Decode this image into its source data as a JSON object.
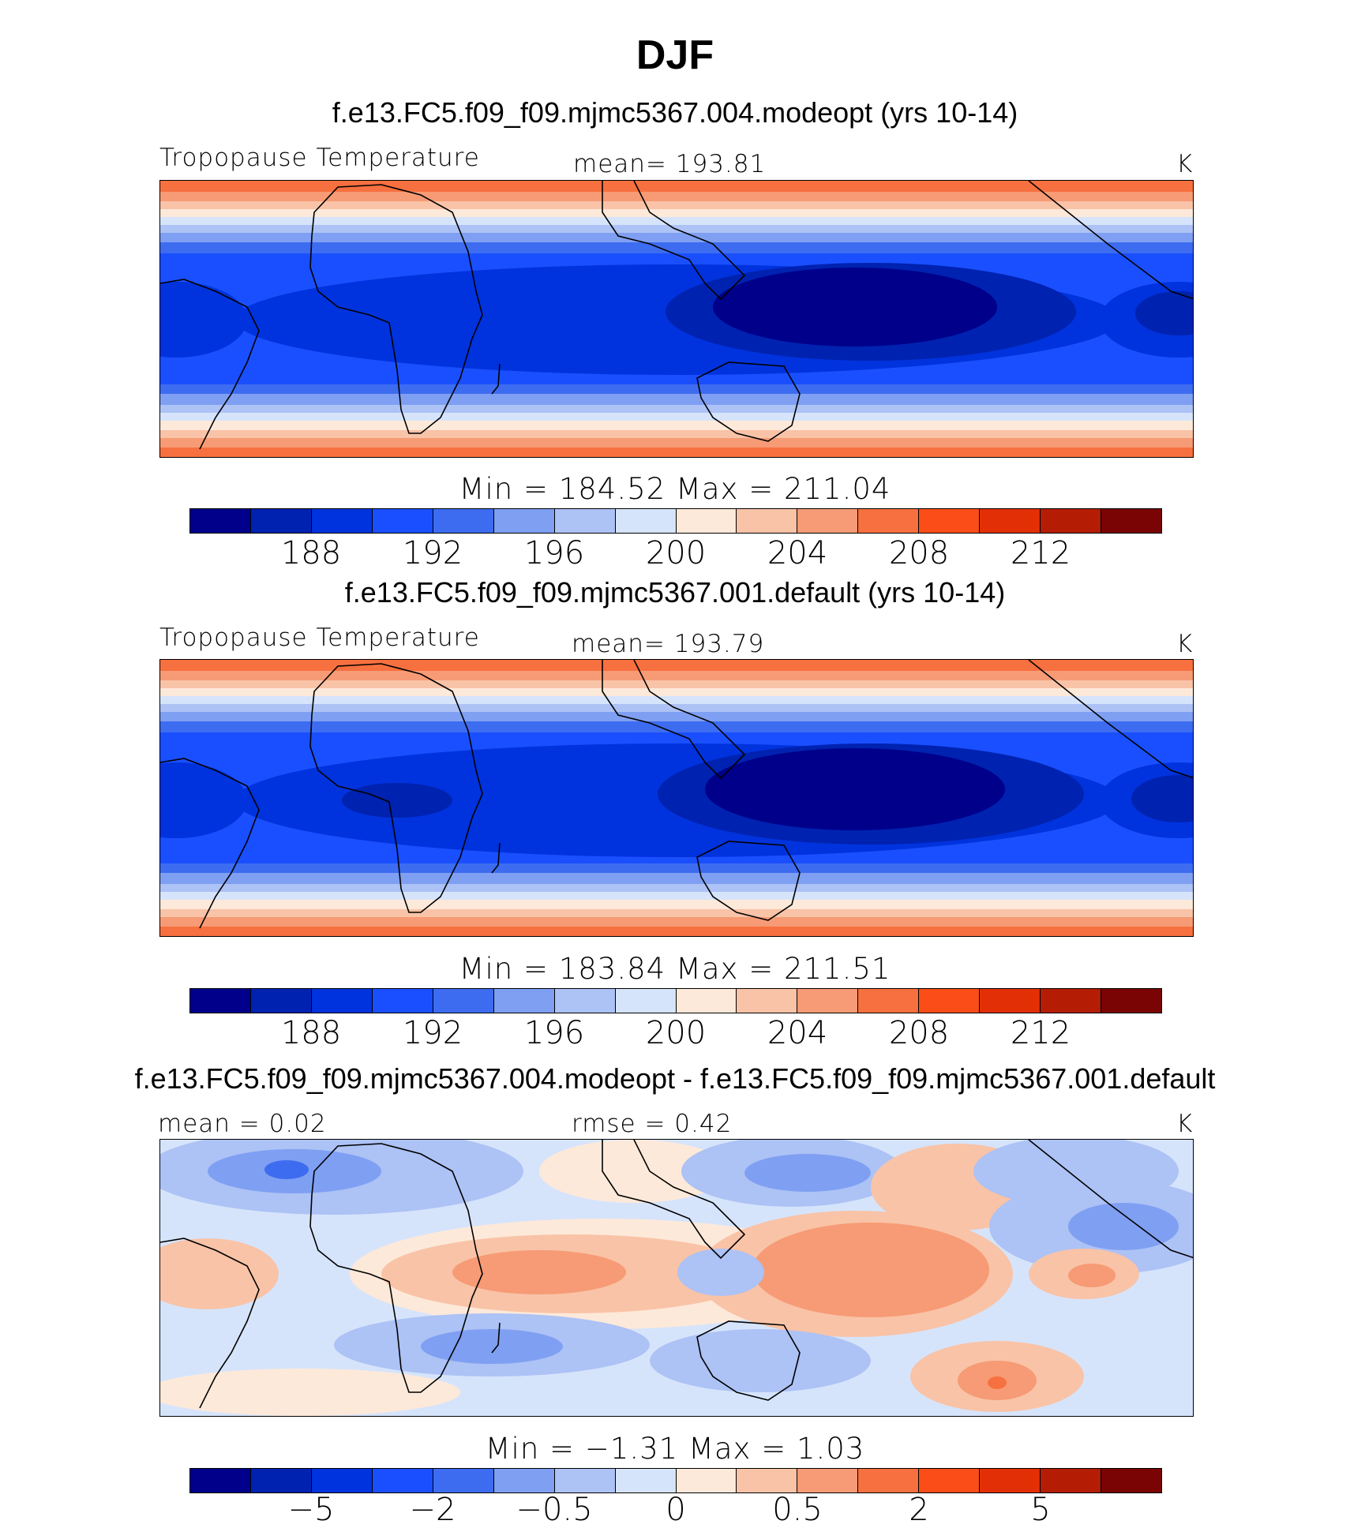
{
  "figure": {
    "season": "DJF"
  },
  "panels": [
    {
      "case_title": "f.e13.FC5.f09_f09.mjmc5367.004.modeopt (yrs 10-14)",
      "left_label": "Tropopause Temperature",
      "center_label": "mean=  193.81",
      "units": "K",
      "minmax": "Min  =  184.52  Max  =  211.04"
    },
    {
      "case_title": "f.e13.FC5.f09_f09.mjmc5367.001.default (yrs 10-14)",
      "left_label": "Tropopause Temperature",
      "center_label": "mean=  193.79",
      "units": "K",
      "minmax": "Min  =  183.84  Max  =  211.51"
    },
    {
      "case_title": "f.e13.FC5.f09_f09.mjmc5367.004.modeopt - f.e13.FC5.f09_f09.mjmc5367.001.default",
      "left_label": "mean  =     0.02",
      "center_label": "rmse  =     0.42",
      "units": "K",
      "minmax": "Min  =   −1.31  Max  =     1.03"
    }
  ],
  "colorbar_colors": [
    "#00008b",
    "#0022b0",
    "#0033dd",
    "#1a4fff",
    "#3d6cf0",
    "#7f9ff2",
    "#adc2f5",
    "#d6e4fb",
    "#fde9d9",
    "#f9c3a7",
    "#f69b75",
    "#f7703f",
    "#fb4d18",
    "#e22f06",
    "#b41d04",
    "#7a0403"
  ],
  "colorbars": [
    {
      "ticks": [
        "188",
        "192",
        "196",
        "200",
        "204",
        "208",
        "212"
      ]
    },
    {
      "ticks": [
        "188",
        "192",
        "196",
        "200",
        "204",
        "208",
        "212"
      ]
    },
    {
      "ticks": [
        "−5",
        "−2",
        "−0.5",
        "0",
        "0.5",
        "2",
        "5"
      ]
    }
  ]
}
